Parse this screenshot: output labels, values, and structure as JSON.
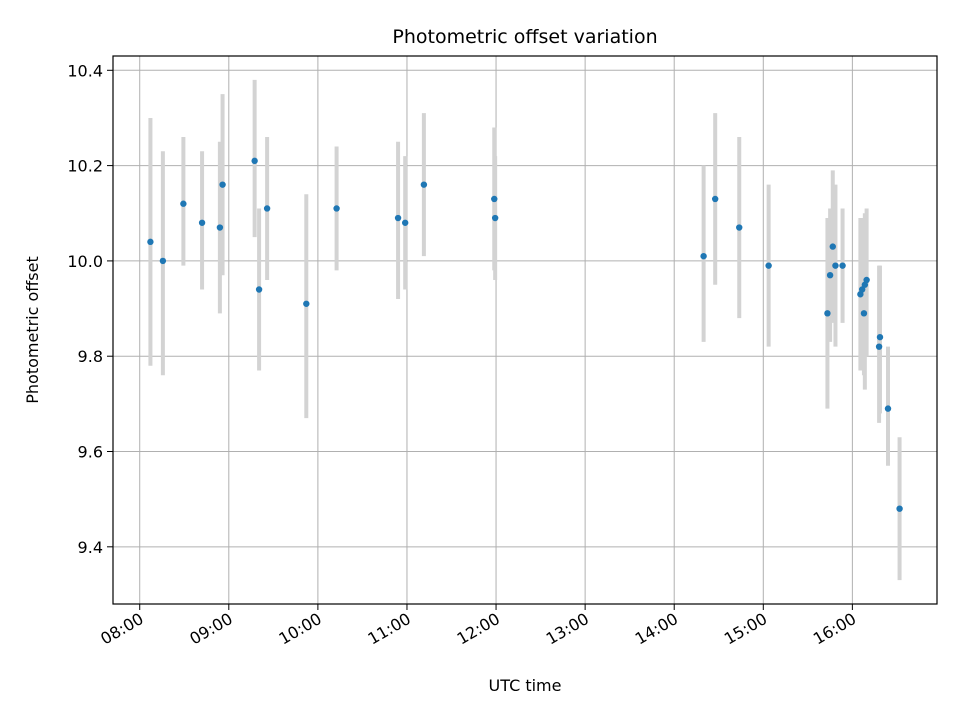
{
  "chart_data": {
    "type": "scatter",
    "title": "Photometric offset variation",
    "xlabel": "UTC time",
    "ylabel": "Photometric offset",
    "grid": true,
    "x_unit": "hour of day (UTC)",
    "xlim": [
      7.7,
      16.95
    ],
    "ylim": [
      9.28,
      10.43
    ],
    "xticks": [
      8,
      9,
      10,
      11,
      12,
      13,
      14,
      15,
      16
    ],
    "xtick_labels": [
      "08:00",
      "09:00",
      "10:00",
      "11:00",
      "12:00",
      "13:00",
      "14:00",
      "15:00",
      "16:00"
    ],
    "yticks": [
      9.4,
      9.6,
      9.8,
      10.0,
      10.2,
      10.4
    ],
    "ytick_labels": [
      "9.4",
      "9.6",
      "9.8",
      "10.0",
      "10.2",
      "10.4"
    ],
    "colors": {
      "point": "#1f77b4",
      "errorbar": "#d3d3d3",
      "grid": "#b0b0b0"
    },
    "points": [
      {
        "x": 8.12,
        "y": 10.04,
        "low": 9.78,
        "high": 10.3
      },
      {
        "x": 8.26,
        "y": 10.0,
        "low": 9.76,
        "high": 10.23
      },
      {
        "x": 8.49,
        "y": 10.12,
        "low": 9.99,
        "high": 10.26
      },
      {
        "x": 8.7,
        "y": 10.08,
        "low": 9.94,
        "high": 10.23
      },
      {
        "x": 8.9,
        "y": 10.07,
        "low": 9.89,
        "high": 10.25
      },
      {
        "x": 8.93,
        "y": 10.16,
        "low": 9.97,
        "high": 10.35
      },
      {
        "x": 9.29,
        "y": 10.21,
        "low": 10.05,
        "high": 10.38
      },
      {
        "x": 9.34,
        "y": 9.94,
        "low": 9.77,
        "high": 10.11
      },
      {
        "x": 9.43,
        "y": 10.11,
        "low": 9.96,
        "high": 10.26
      },
      {
        "x": 9.87,
        "y": 9.91,
        "low": 9.67,
        "high": 10.14
      },
      {
        "x": 10.21,
        "y": 10.11,
        "low": 9.98,
        "high": 10.24
      },
      {
        "x": 10.9,
        "y": 10.09,
        "low": 9.92,
        "high": 10.25
      },
      {
        "x": 10.98,
        "y": 10.08,
        "low": 9.94,
        "high": 10.22
      },
      {
        "x": 11.19,
        "y": 10.16,
        "low": 10.01,
        "high": 10.31
      },
      {
        "x": 11.98,
        "y": 10.13,
        "low": 9.98,
        "high": 10.28
      },
      {
        "x": 11.99,
        "y": 10.09,
        "low": 9.96,
        "high": 10.22
      },
      {
        "x": 14.33,
        "y": 10.01,
        "low": 9.83,
        "high": 10.2
      },
      {
        "x": 14.46,
        "y": 10.13,
        "low": 9.95,
        "high": 10.31
      },
      {
        "x": 14.73,
        "y": 10.07,
        "low": 9.88,
        "high": 10.26
      },
      {
        "x": 15.06,
        "y": 9.99,
        "low": 9.82,
        "high": 10.16
      },
      {
        "x": 15.72,
        "y": 9.89,
        "low": 9.69,
        "high": 10.09
      },
      {
        "x": 15.75,
        "y": 9.97,
        "low": 9.83,
        "high": 10.11
      },
      {
        "x": 15.78,
        "y": 10.03,
        "low": 9.87,
        "high": 10.19
      },
      {
        "x": 15.81,
        "y": 9.99,
        "low": 9.82,
        "high": 10.16
      },
      {
        "x": 15.89,
        "y": 9.99,
        "low": 9.87,
        "high": 10.11
      },
      {
        "x": 16.09,
        "y": 9.93,
        "low": 9.77,
        "high": 10.09
      },
      {
        "x": 16.11,
        "y": 9.94,
        "low": 9.79,
        "high": 10.09
      },
      {
        "x": 16.13,
        "y": 9.89,
        "low": 9.76,
        "high": 10.01
      },
      {
        "x": 16.14,
        "y": 9.95,
        "low": 9.73,
        "high": 10.1
      },
      {
        "x": 16.16,
        "y": 9.96,
        "low": 9.8,
        "high": 10.11
      },
      {
        "x": 16.3,
        "y": 9.82,
        "low": 9.66,
        "high": 9.99
      },
      {
        "x": 16.31,
        "y": 9.84,
        "low": 9.68,
        "high": 9.99
      },
      {
        "x": 16.4,
        "y": 9.69,
        "low": 9.57,
        "high": 9.82
      },
      {
        "x": 16.53,
        "y": 9.48,
        "low": 9.33,
        "high": 9.63
      }
    ]
  }
}
